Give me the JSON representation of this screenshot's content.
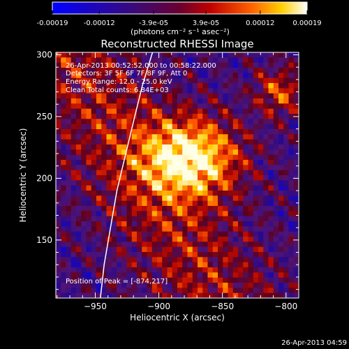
{
  "colorbar": {
    "tick_labels": [
      "-0.00019",
      "-0.00012",
      "-3.9e-05",
      "3.9e-05",
      "0.00012",
      "0.00019"
    ],
    "tick_values": [
      -0.00019,
      -0.00012,
      -3.9e-05,
      3.9e-05,
      0.00012,
      0.00019
    ],
    "range": [
      -0.00019,
      0.00019
    ],
    "unit_label": "(photons cm⁻² s⁻¹ asec⁻²)",
    "colors": [
      "#0000ff",
      "#2a0a6a",
      "#6a1a8a",
      "#8a0022",
      "#ff2a00",
      "#ffcc00",
      "#ffffff"
    ]
  },
  "chart_data": {
    "type": "heatmap",
    "title": "Reconstructed RHESSI Image",
    "xlabel": "Heliocentric X (arcsec)",
    "ylabel": "Heliocentric Y (arcsec)",
    "xlim": [
      -981,
      -790
    ],
    "ylim": [
      103,
      302
    ],
    "x_ticks": [
      -950,
      -900,
      -850,
      -800
    ],
    "x_tick_labels": [
      "−950",
      "−900",
      "−850",
      "−800"
    ],
    "y_ticks": [
      150,
      200,
      250,
      300
    ],
    "y_tick_labels": [
      "150",
      "200",
      "250",
      "300"
    ],
    "peak": [
      -874,
      217
    ],
    "limb_points": [
      [
        -946,
        103
      ],
      [
        -943,
        130
      ],
      [
        -938,
        160
      ],
      [
        -933,
        190
      ],
      [
        -926,
        220
      ],
      [
        -919,
        250
      ],
      [
        -913,
        275
      ],
      [
        -905,
        302
      ]
    ],
    "annotations": {
      "time_range": "26-Apr-2013 00:52:52.000 to 00:58:22.000",
      "detectors": "Detectors: 3F 5F 6F 7F 8F 9F, Att 0",
      "energy_range": "Energy Range: 12.0 - 25.0 keV",
      "method": "Clean      Total counts: 6.84E+03",
      "peak_label": "Position of Peak = [-874,217]"
    }
  },
  "footer": {
    "timestamp": "26-Apr-2013 04:59"
  }
}
